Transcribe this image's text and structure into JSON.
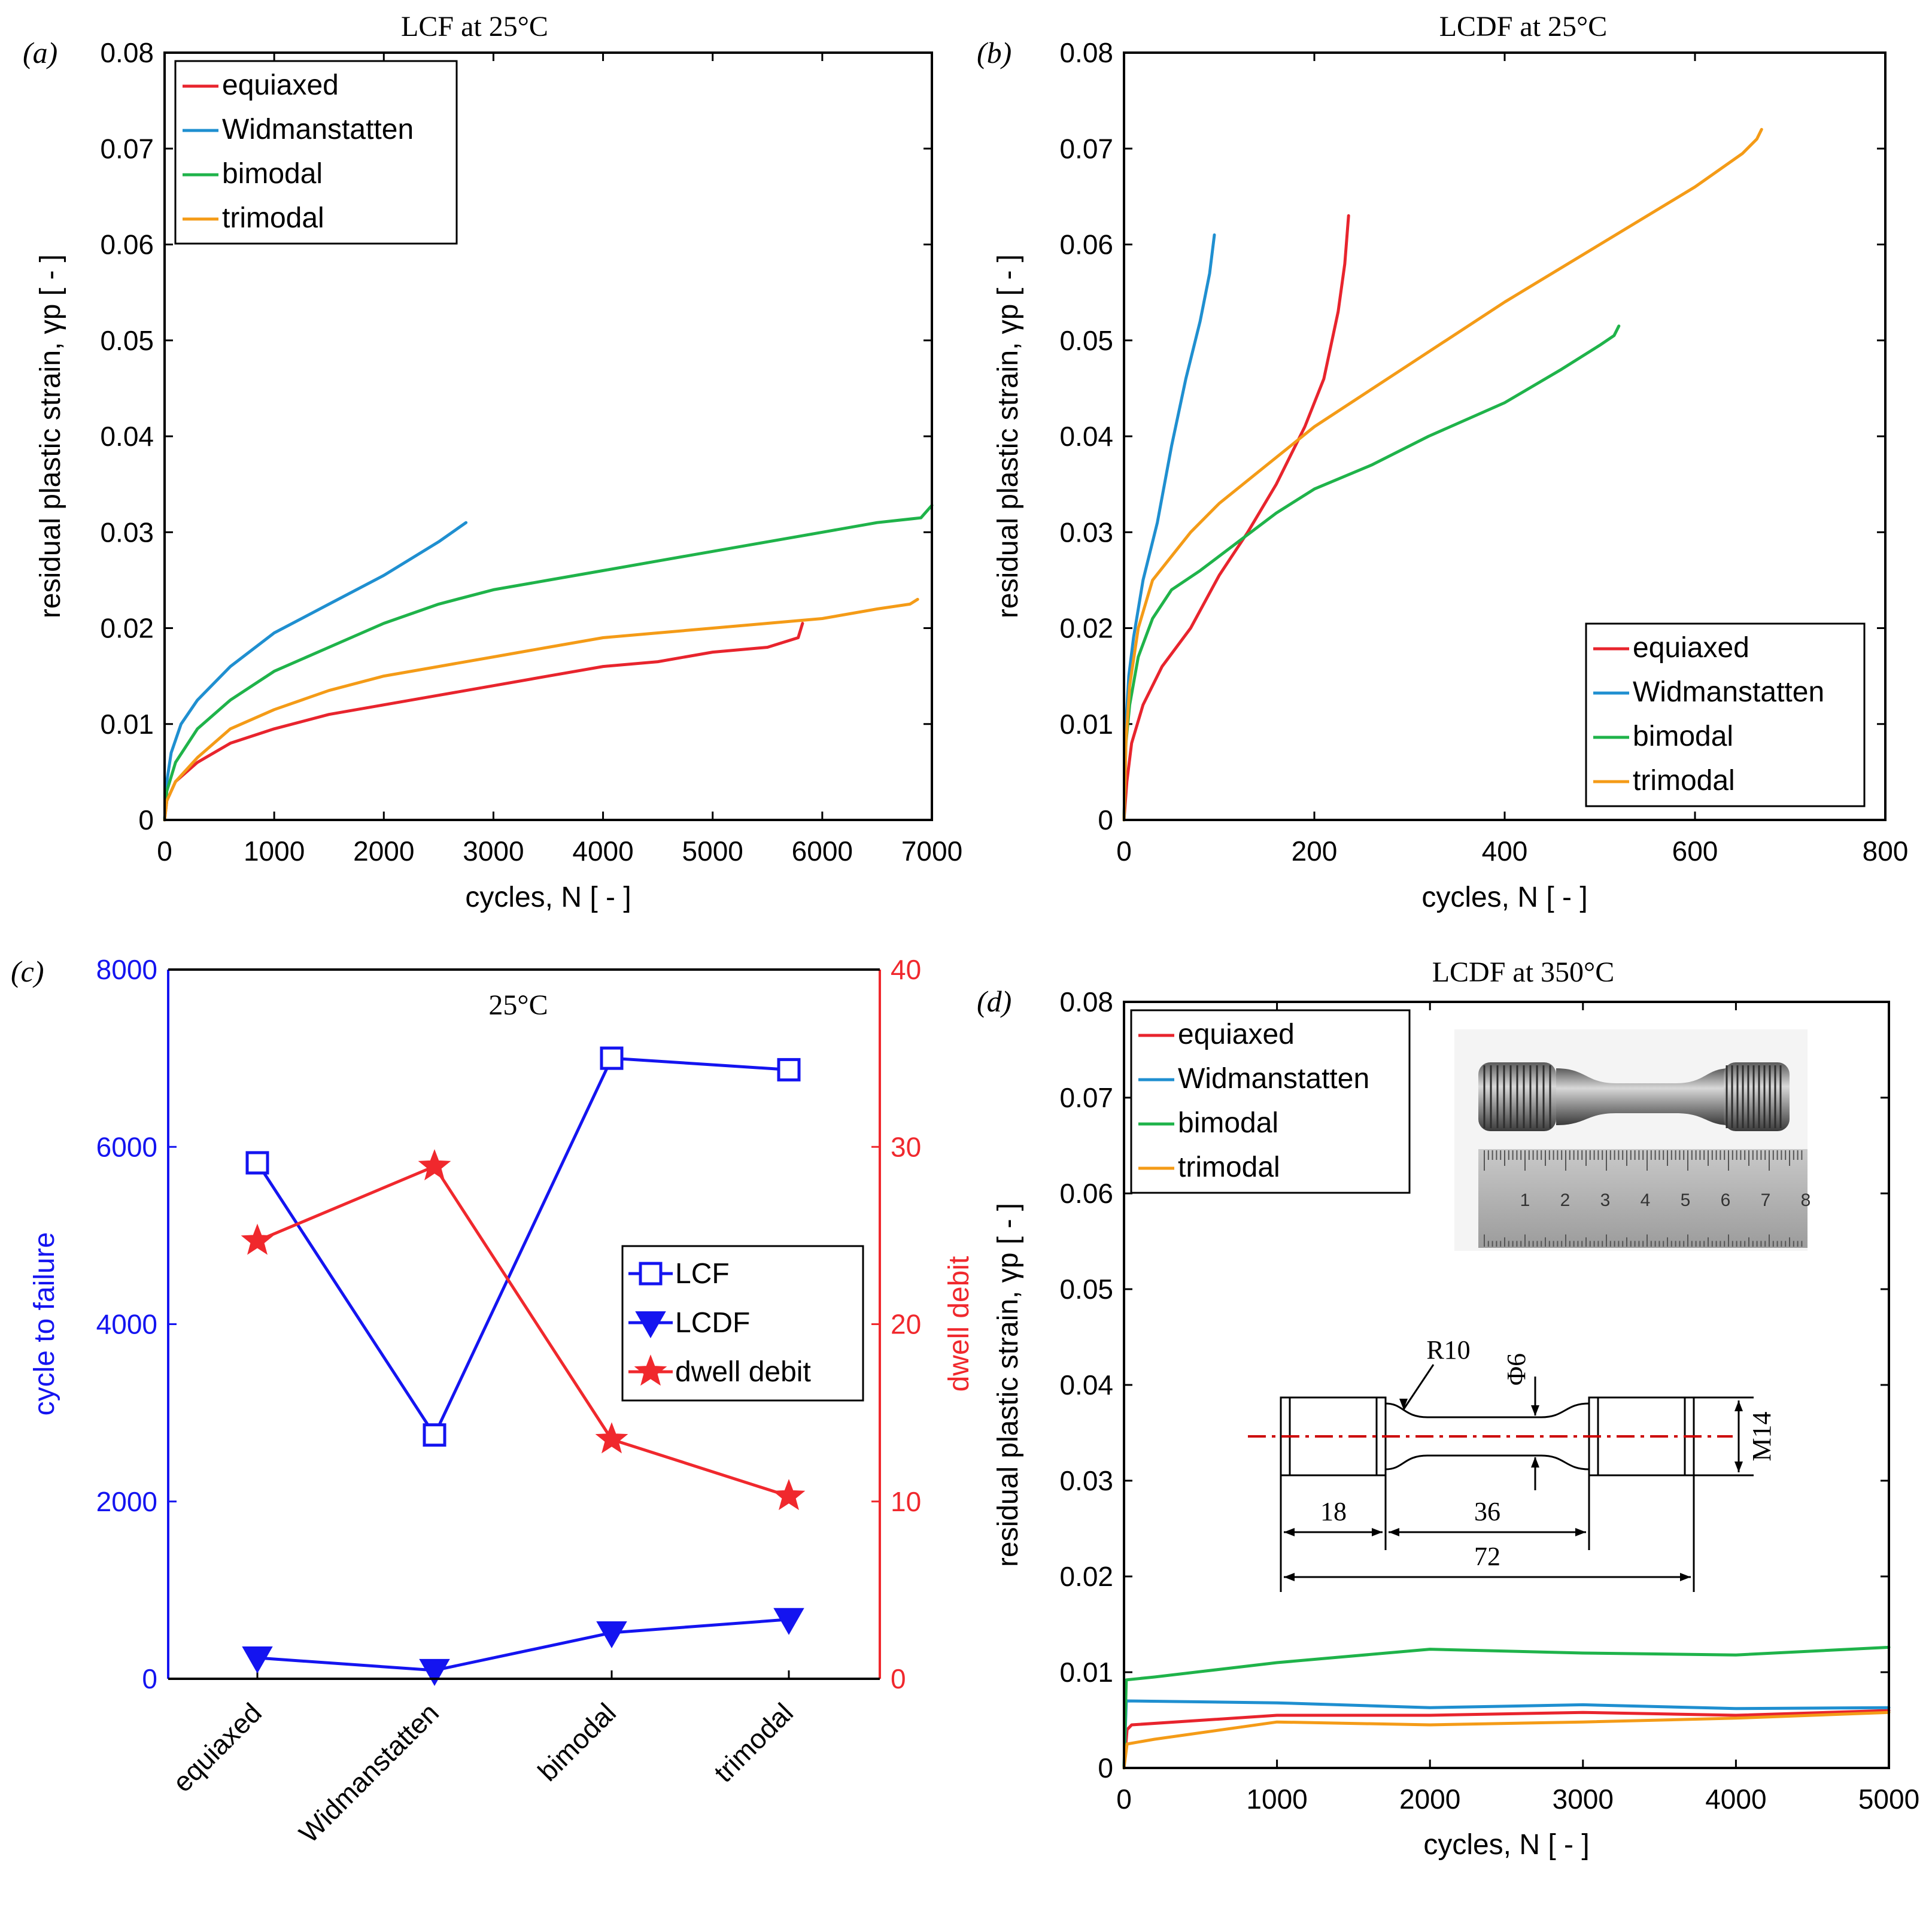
{
  "colors": {
    "equiaxed": "#e8242d",
    "widmanstatten": "#1f8fd0",
    "bimodal": "#1fb34a",
    "trimodal": "#f49b17",
    "lcf_blue": "#1414f0",
    "debit_red": "#f0282d",
    "centerline": "#cc0000"
  },
  "chart_data": [
    {
      "id": "a",
      "type": "line",
      "panel_label": "(a)",
      "title": "LCF at 25°C",
      "xlabel": "cycles, N [ - ]",
      "ylabel": "residual plastic strain, γp [ - ]",
      "xlim": [
        0,
        7000
      ],
      "ylim": [
        0,
        0.08
      ],
      "xticks": [
        0,
        1000,
        2000,
        3000,
        4000,
        5000,
        6000,
        7000
      ],
      "yticks": [
        0,
        0.01,
        0.02,
        0.03,
        0.04,
        0.05,
        0.06,
        0.07,
        0.08
      ],
      "xtick_labels": [
        "0",
        "1000",
        "2000",
        "3000",
        "4000",
        "5000",
        "6000",
        "7000"
      ],
      "ytick_labels": [
        "0",
        "0.01",
        "0.02",
        "0.03",
        "0.04",
        "0.05",
        "0.06",
        "0.07",
        "0.08"
      ],
      "legend_position": "top-left",
      "series": [
        {
          "name": "equiaxed",
          "color_key": "equiaxed",
          "points": [
            [
              0,
              0
            ],
            [
              20,
              0.002
            ],
            [
              100,
              0.004
            ],
            [
              300,
              0.006
            ],
            [
              600,
              0.008
            ],
            [
              1000,
              0.0095
            ],
            [
              1500,
              0.011
            ],
            [
              2000,
              0.012
            ],
            [
              2500,
              0.013
            ],
            [
              3000,
              0.014
            ],
            [
              3500,
              0.015
            ],
            [
              4000,
              0.016
            ],
            [
              4500,
              0.0165
            ],
            [
              5000,
              0.0175
            ],
            [
              5500,
              0.018
            ],
            [
              5780,
              0.019
            ],
            [
              5820,
              0.0205
            ]
          ]
        },
        {
          "name": "Widmanstatten",
          "color_key": "widmanstatten",
          "points": [
            [
              0,
              0
            ],
            [
              20,
              0.004
            ],
            [
              60,
              0.007
            ],
            [
              150,
              0.01
            ],
            [
              300,
              0.0125
            ],
            [
              600,
              0.016
            ],
            [
              1000,
              0.0195
            ],
            [
              1500,
              0.0225
            ],
            [
              2000,
              0.0255
            ],
            [
              2500,
              0.029
            ],
            [
              2750,
              0.031
            ]
          ]
        },
        {
          "name": "bimodal",
          "color_key": "bimodal",
          "points": [
            [
              0,
              0
            ],
            [
              20,
              0.003
            ],
            [
              100,
              0.006
            ],
            [
              300,
              0.0095
            ],
            [
              600,
              0.0125
            ],
            [
              1000,
              0.0155
            ],
            [
              1500,
              0.018
            ],
            [
              2000,
              0.0205
            ],
            [
              2500,
              0.0225
            ],
            [
              3000,
              0.024
            ],
            [
              3500,
              0.025
            ],
            [
              4000,
              0.026
            ],
            [
              4500,
              0.027
            ],
            [
              5000,
              0.028
            ],
            [
              5500,
              0.029
            ],
            [
              6000,
              0.03
            ],
            [
              6500,
              0.031
            ],
            [
              6900,
              0.0315
            ],
            [
              7000,
              0.0328
            ]
          ]
        },
        {
          "name": "trimodal",
          "color_key": "trimodal",
          "points": [
            [
              0,
              0
            ],
            [
              20,
              0.002
            ],
            [
              100,
              0.004
            ],
            [
              300,
              0.0065
            ],
            [
              600,
              0.0095
            ],
            [
              1000,
              0.0115
            ],
            [
              1500,
              0.0135
            ],
            [
              2000,
              0.015
            ],
            [
              2500,
              0.016
            ],
            [
              3000,
              0.017
            ],
            [
              3500,
              0.018
            ],
            [
              4000,
              0.019
            ],
            [
              4500,
              0.0195
            ],
            [
              5000,
              0.02
            ],
            [
              5500,
              0.0205
            ],
            [
              6000,
              0.021
            ],
            [
              6500,
              0.022
            ],
            [
              6800,
              0.0225
            ],
            [
              6870,
              0.023
            ]
          ]
        }
      ]
    },
    {
      "id": "b",
      "type": "line",
      "panel_label": "(b)",
      "title": "LCDF at 25°C",
      "xlabel": "cycles, N [ - ]",
      "ylabel": "residual plastic strain, γp [ - ]",
      "xlim": [
        0,
        800
      ],
      "ylim": [
        0,
        0.08
      ],
      "xticks": [
        0,
        200,
        400,
        600,
        800
      ],
      "yticks": [
        0,
        0.01,
        0.02,
        0.03,
        0.04,
        0.05,
        0.06,
        0.07,
        0.08
      ],
      "xtick_labels": [
        "0",
        "200",
        "400",
        "600",
        "800"
      ],
      "ytick_labels": [
        "0",
        "0.01",
        "0.02",
        "0.03",
        "0.04",
        "0.05",
        "0.06",
        "0.07",
        "0.08"
      ],
      "legend_position": "bottom-right",
      "series": [
        {
          "name": "equiaxed",
          "color_key": "equiaxed",
          "points": [
            [
              0,
              0
            ],
            [
              3,
              0.004
            ],
            [
              8,
              0.008
            ],
            [
              20,
              0.012
            ],
            [
              40,
              0.016
            ],
            [
              70,
              0.02
            ],
            [
              100,
              0.0255
            ],
            [
              130,
              0.03
            ],
            [
              160,
              0.035
            ],
            [
              190,
              0.041
            ],
            [
              210,
              0.046
            ],
            [
              225,
              0.053
            ],
            [
              232,
              0.058
            ],
            [
              236,
              0.063
            ]
          ]
        },
        {
          "name": "Widmanstatten",
          "color_key": "widmanstatten",
          "points": [
            [
              0,
              0
            ],
            [
              2,
              0.01
            ],
            [
              5,
              0.015
            ],
            [
              10,
              0.019
            ],
            [
              20,
              0.025
            ],
            [
              35,
              0.031
            ],
            [
              50,
              0.039
            ],
            [
              65,
              0.046
            ],
            [
              80,
              0.052
            ],
            [
              90,
              0.057
            ],
            [
              95,
              0.061
            ]
          ]
        },
        {
          "name": "bimodal",
          "color_key": "bimodal",
          "points": [
            [
              0,
              0
            ],
            [
              2,
              0.008
            ],
            [
              6,
              0.012
            ],
            [
              15,
              0.017
            ],
            [
              30,
              0.021
            ],
            [
              50,
              0.024
            ],
            [
              80,
              0.026
            ],
            [
              120,
              0.029
            ],
            [
              160,
              0.032
            ],
            [
              200,
              0.0345
            ],
            [
              260,
              0.037
            ],
            [
              320,
              0.04
            ],
            [
              400,
              0.0435
            ],
            [
              460,
              0.047
            ],
            [
              500,
              0.0495
            ],
            [
              515,
              0.0505
            ],
            [
              520,
              0.0515
            ]
          ]
        },
        {
          "name": "trimodal",
          "color_key": "trimodal",
          "points": [
            [
              0,
              0
            ],
            [
              2,
              0.008
            ],
            [
              6,
              0.014
            ],
            [
              15,
              0.02
            ],
            [
              30,
              0.025
            ],
            [
              50,
              0.0275
            ],
            [
              70,
              0.03
            ],
            [
              100,
              0.033
            ],
            [
              150,
              0.037
            ],
            [
              200,
              0.041
            ],
            [
              300,
              0.0475
            ],
            [
              400,
              0.054
            ],
            [
              500,
              0.06
            ],
            [
              600,
              0.066
            ],
            [
              650,
              0.0695
            ],
            [
              665,
              0.071
            ],
            [
              670,
              0.072
            ]
          ]
        }
      ]
    },
    {
      "id": "c",
      "type": "line",
      "panel_label": "(c)",
      "title": "25°C",
      "categories": [
        "equiaxed",
        "Widmanstatten",
        "bimodal",
        "trimodal"
      ],
      "ylabel": "cycle to failure",
      "ylabel_right": "dwell debit",
      "ylim": [
        0,
        8000
      ],
      "ylim_right": [
        0,
        40
      ],
      "yticks": [
        0,
        2000,
        4000,
        6000,
        8000
      ],
      "ytick_labels": [
        "0",
        "2000",
        "4000",
        "6000",
        "8000"
      ],
      "yticks_right": [
        0,
        10,
        20,
        30,
        40
      ],
      "ytick_labels_right": [
        "0",
        "10",
        "20",
        "30",
        "40"
      ],
      "legend_position": "center-right",
      "series": [
        {
          "name": "LCF",
          "axis": "left",
          "marker": "square",
          "color_key": "lcf_blue",
          "values": [
            5820,
            2750,
            7000,
            6870
          ]
        },
        {
          "name": "LCDF",
          "axis": "left",
          "marker": "triangle-down",
          "color_key": "lcf_blue",
          "values": [
            236,
            95,
            520,
            670
          ]
        },
        {
          "name": "dwell debit",
          "axis": "right",
          "marker": "star",
          "color_key": "debit_red",
          "values": [
            24.7,
            28.9,
            13.5,
            10.3
          ]
        }
      ]
    },
    {
      "id": "d",
      "type": "line",
      "panel_label": "(d)",
      "title": "LCDF at 350°C",
      "xlabel": "cycles, N [ - ]",
      "ylabel": "residual plastic strain, γp [ - ]",
      "xlim": [
        0,
        5000
      ],
      "ylim": [
        0,
        0.08
      ],
      "xticks": [
        0,
        1000,
        2000,
        3000,
        4000,
        5000
      ],
      "yticks": [
        0,
        0.01,
        0.02,
        0.03,
        0.04,
        0.05,
        0.06,
        0.07,
        0.08
      ],
      "xtick_labels": [
        "0",
        "1000",
        "2000",
        "3000",
        "4000",
        "5000"
      ],
      "ytick_labels": [
        "0",
        "0.01",
        "0.02",
        "0.03",
        "0.04",
        "0.05",
        "0.06",
        "0.07",
        "0.08"
      ],
      "legend_position": "top-left",
      "series": [
        {
          "name": "equiaxed",
          "color_key": "equiaxed",
          "points": [
            [
              0,
              0
            ],
            [
              20,
              0.004
            ],
            [
              50,
              0.0045
            ],
            [
              1000,
              0.0055
            ],
            [
              2000,
              0.0055
            ],
            [
              3000,
              0.0058
            ],
            [
              4000,
              0.0055
            ],
            [
              5000,
              0.006
            ]
          ]
        },
        {
          "name": "Widmanstatten",
          "color_key": "widmanstatten",
          "points": [
            [
              0,
              0
            ],
            [
              15,
              0.007
            ],
            [
              1000,
              0.0068
            ],
            [
              2000,
              0.0063
            ],
            [
              3000,
              0.0066
            ],
            [
              4000,
              0.0062
            ],
            [
              5000,
              0.0063
            ]
          ]
        },
        {
          "name": "bimodal",
          "color_key": "bimodal",
          "points": [
            [
              0,
              0
            ],
            [
              15,
              0.0092
            ],
            [
              200,
              0.0095
            ],
            [
              1000,
              0.011
            ],
            [
              2000,
              0.0124
            ],
            [
              3000,
              0.012
            ],
            [
              4000,
              0.0118
            ],
            [
              5000,
              0.0126
            ]
          ]
        },
        {
          "name": "trimodal",
          "color_key": "trimodal",
          "points": [
            [
              0,
              0
            ],
            [
              20,
              0.0025
            ],
            [
              200,
              0.003
            ],
            [
              1000,
              0.0048
            ],
            [
              2000,
              0.0045
            ],
            [
              3000,
              0.0048
            ],
            [
              4000,
              0.0052
            ],
            [
              5000,
              0.0058
            ]
          ]
        }
      ],
      "inset_drawing": {
        "labels": [
          "R10",
          "Φ6",
          "M14",
          "18",
          "36",
          "72"
        ]
      },
      "ruler_numbers": [
        "1",
        "2",
        "3",
        "4",
        "5",
        "6",
        "7",
        "8"
      ]
    }
  ]
}
